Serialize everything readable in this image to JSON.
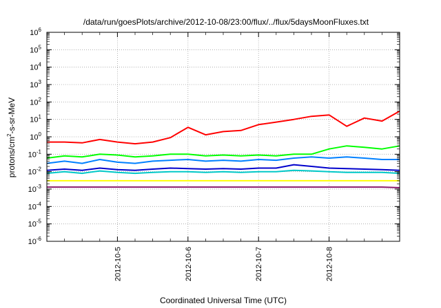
{
  "chart_data": {
    "type": "line",
    "title": "/data/run/goesPlots/archive/2012-10-08/23:00/flux/../flux/5daysMoonFluxes.txt",
    "xlabel": "Coordinated Universal Time (UTC)",
    "ylabel": {
      "base": "protons/cm",
      "sup": "2",
      "rest": "-s-sr-MeV"
    },
    "x_ticks": [
      "2012-10-5",
      "2012-10-6",
      "2012-10-7",
      "2012-10-8"
    ],
    "xlim": [
      "2012-10-04 00:00",
      "2012-10-09 00:00"
    ],
    "y_scale": "log",
    "ylim": [
      1e-06,
      1000000.0
    ],
    "y_ticks": [
      {
        "base": "10",
        "exp": "-6"
      },
      {
        "base": "10",
        "exp": "-5"
      },
      {
        "base": "10",
        "exp": "-4"
      },
      {
        "base": "10",
        "exp": "-3"
      },
      {
        "base": "10",
        "exp": "-2"
      },
      {
        "base": "10",
        "exp": "-1"
      },
      {
        "base": "10",
        "exp": "0"
      },
      {
        "base": "10",
        "exp": "1"
      },
      {
        "base": "10",
        "exp": "2"
      },
      {
        "base": "10",
        "exp": "3"
      },
      {
        "base": "10",
        "exp": "4"
      },
      {
        "base": "10",
        "exp": "5"
      },
      {
        "base": "10",
        "exp": "6"
      }
    ],
    "grid": true,
    "x": [
      "2012-10-04 00:00",
      "2012-10-04 06:00",
      "2012-10-04 12:00",
      "2012-10-04 18:00",
      "2012-10-05 00:00",
      "2012-10-05 06:00",
      "2012-10-05 12:00",
      "2012-10-05 18:00",
      "2012-10-06 00:00",
      "2012-10-06 06:00",
      "2012-10-06 12:00",
      "2012-10-06 18:00",
      "2012-10-07 00:00",
      "2012-10-07 06:00",
      "2012-10-07 12:00",
      "2012-10-07 18:00",
      "2012-10-08 00:00",
      "2012-10-08 06:00",
      "2012-10-08 12:00",
      "2012-10-08 18:00",
      "2012-10-09 00:00"
    ],
    "series": [
      {
        "color": "#ff0000",
        "values": [
          0.5,
          0.5,
          0.45,
          0.7,
          0.5,
          0.4,
          0.5,
          0.9,
          3.5,
          1.3,
          2.0,
          2.3,
          5.0,
          7.0,
          10.0,
          15.0,
          18.0,
          4.0,
          12.0,
          8.0,
          30.0
        ]
      },
      {
        "color": "#00ff00",
        "values": [
          0.06,
          0.08,
          0.07,
          0.1,
          0.09,
          0.07,
          0.08,
          0.1,
          0.1,
          0.08,
          0.09,
          0.08,
          0.09,
          0.08,
          0.1,
          0.1,
          0.2,
          0.3,
          0.25,
          0.2,
          0.3
        ]
      },
      {
        "color": "#0080ff",
        "values": [
          0.03,
          0.04,
          0.03,
          0.05,
          0.035,
          0.03,
          0.04,
          0.045,
          0.05,
          0.04,
          0.045,
          0.04,
          0.05,
          0.045,
          0.06,
          0.07,
          0.06,
          0.07,
          0.06,
          0.05,
          0.05
        ]
      },
      {
        "color": "#0000cc",
        "values": [
          0.012,
          0.014,
          0.012,
          0.016,
          0.013,
          0.012,
          0.014,
          0.016,
          0.015,
          0.014,
          0.015,
          0.014,
          0.016,
          0.016,
          0.025,
          0.02,
          0.016,
          0.015,
          0.014,
          0.013,
          0.012
        ]
      },
      {
        "color": "#00c8c8",
        "values": [
          0.008,
          0.01,
          0.008,
          0.011,
          0.009,
          0.008,
          0.009,
          0.01,
          0.01,
          0.009,
          0.01,
          0.009,
          0.01,
          0.01,
          0.012,
          0.011,
          0.01,
          0.009,
          0.009,
          0.009,
          0.008
        ]
      },
      {
        "color": "#ffff00",
        "values": [
          0.003,
          0.003,
          0.003,
          0.003,
          0.003,
          0.003,
          0.003,
          0.003,
          0.003,
          0.003,
          0.003,
          0.003,
          0.003,
          0.003,
          0.003,
          0.003,
          0.003,
          0.003,
          0.003,
          0.003,
          0.003
        ]
      },
      {
        "color": "#8b1a6b",
        "values": [
          0.0013,
          0.0013,
          0.0013,
          0.0013,
          0.0013,
          0.0013,
          0.0013,
          0.0013,
          0.0013,
          0.0013,
          0.0013,
          0.0013,
          0.0013,
          0.0013,
          0.0013,
          0.0013,
          0.0013,
          0.0013,
          0.0013,
          0.0013,
          0.0012
        ]
      }
    ]
  }
}
